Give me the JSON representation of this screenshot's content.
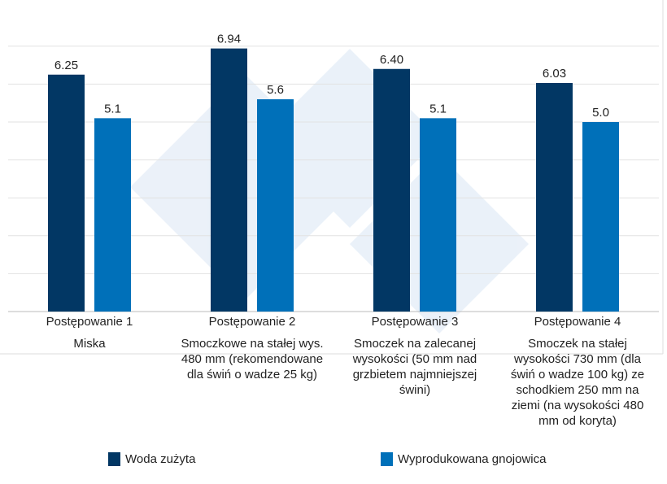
{
  "chart_data": {
    "type": "bar",
    "categories": [
      "Postępowanie 1",
      "Postępowanie 2",
      "Postępowanie 3",
      "Postępowanie 4"
    ],
    "descriptions": [
      "Miska",
      "Smoczkowe na stałej wys. 480 mm (rekomendowane dla świń o wadze 25 kg)",
      "Smoczek na zalecanej wysokości (50 mm nad grzbietem najmniejszej świni)",
      "Smoczek na stałej wysokości 730 mm (dla świń o wadze 100 kg) ze schodkiem 250 mm na ziemi (na wysokości 480 mm od koryta)"
    ],
    "series": [
      {
        "name": "Woda zużyta",
        "color": "#023764",
        "values": [
          6.25,
          6.94,
          6.4,
          6.03
        ],
        "labels": [
          "6.25",
          "6.94",
          "6.40",
          "6.03"
        ]
      },
      {
        "name": "Wyprodukowana gnojowica",
        "color": "#0070b9",
        "values": [
          5.1,
          5.6,
          5.1,
          5.0
        ],
        "labels": [
          "5.1",
          "5.6",
          "5.1",
          "5.0"
        ]
      }
    ],
    "ylim": [
      0,
      7
    ],
    "grid": true,
    "legend": "bottom"
  }
}
